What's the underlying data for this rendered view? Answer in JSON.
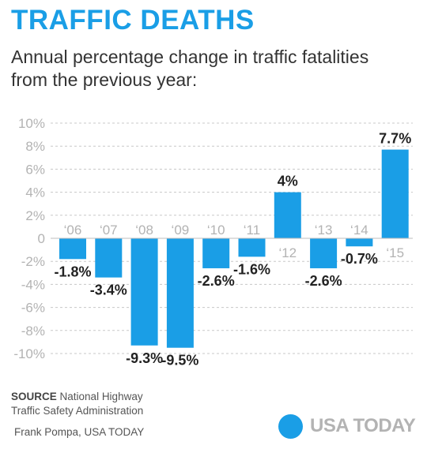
{
  "header": {
    "title": "TRAFFIC DEATHS",
    "subtitle": "Annual percentage change in traffic fatalities from the previous year:"
  },
  "footer": {
    "source_label": "SOURCE",
    "source_text": "National Highway",
    "source_text_2": "Traffic Safety Administration",
    "credit": "Frank Pompa, USA TODAY",
    "logo_text": "USA TODAY"
  },
  "colors": {
    "accent": "#1a9ee6",
    "tick": "#b3b3b3",
    "label": "#222222"
  },
  "chart_data": {
    "type": "bar",
    "categories": [
      "‘06",
      "‘07",
      "‘08",
      "‘09",
      "‘10",
      "‘11",
      "‘12",
      "‘13",
      "‘14",
      "‘15"
    ],
    "values": [
      -1.8,
      -3.4,
      -9.3,
      -9.5,
      -2.6,
      -1.6,
      4,
      -2.6,
      -0.7,
      7.7
    ],
    "value_labels": [
      "-1.8%",
      "-3.4%",
      "-9.3%",
      "-9.5%",
      "-2.6%",
      "-1.6%",
      "4%",
      "-2.6%",
      "-0.7%",
      "7.7%"
    ],
    "yticks": [
      10,
      8,
      6,
      4,
      2,
      0,
      -2,
      -4,
      -6,
      -8,
      -10
    ],
    "ytick_labels": [
      "10%",
      "8%",
      "6%",
      "4%",
      "2%",
      "0",
      "-2%",
      "-4%",
      "-6%",
      "-8%",
      "-10%"
    ],
    "ylim": [
      -10,
      10
    ],
    "grid": true,
    "legend": "none"
  }
}
